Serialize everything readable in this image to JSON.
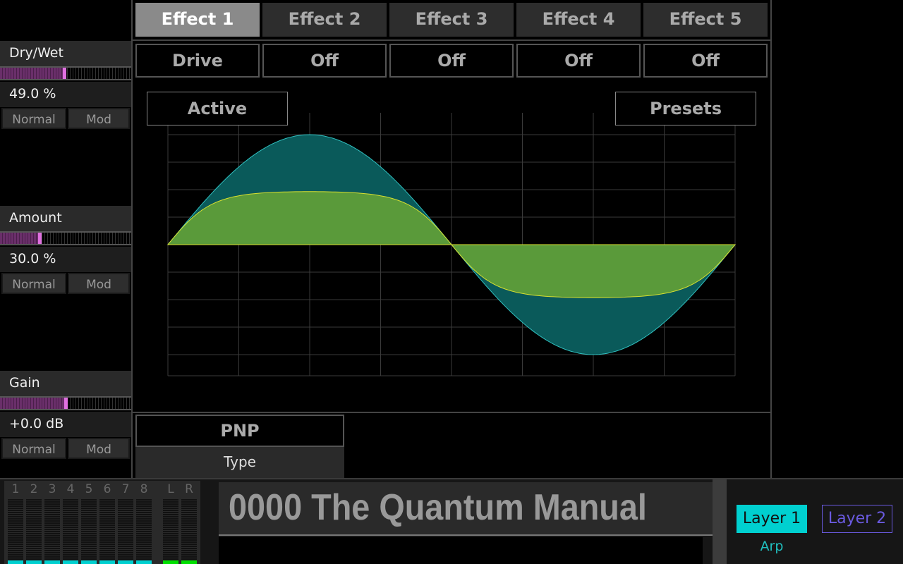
{
  "params": [
    {
      "label": "Dry/Wet",
      "value": "49.0 %",
      "level": 0.49,
      "mode_normal": "Normal",
      "mode_mod": "Mod"
    },
    {
      "label": "Amount",
      "value": "30.0 %",
      "level": 0.3,
      "mode_normal": "Normal",
      "mode_mod": "Mod"
    },
    {
      "label": "Gain",
      "value": "+0.0 dB",
      "level": 0.5,
      "mode_normal": "Normal",
      "mode_mod": "Mod"
    }
  ],
  "tabs": [
    "Effect 1",
    "Effect 2",
    "Effect 3",
    "Effect 4",
    "Effect 5"
  ],
  "active_tab": 0,
  "slots": [
    "Drive",
    "Off",
    "Off",
    "Off",
    "Off"
  ],
  "active_button": "Active",
  "presets_button": "Presets",
  "type": {
    "value": "PNP",
    "label": "Type"
  },
  "meters": {
    "labels": [
      "1",
      "2",
      "3",
      "4",
      "5",
      "6",
      "7",
      "8",
      "L",
      "R"
    ]
  },
  "preset_name": "0000 The Quantum Manual",
  "layers": {
    "layer1": "Layer 1",
    "layer2": "Layer 2",
    "arp": "Arp"
  },
  "colors": {
    "accent_cyan": "#00d0d0",
    "layer2": "#6a5ae0",
    "slider": "#e070e0",
    "dry_wave": "#0a5a5a",
    "wet_wave": "#5a9a3a",
    "meter_out": "#00e000"
  }
}
